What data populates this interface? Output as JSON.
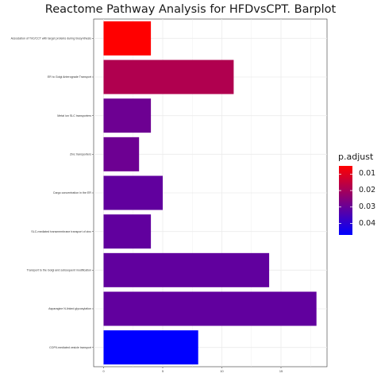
{
  "chart_data": {
    "type": "bar",
    "orientation": "horizontal",
    "title": "Reactome Pathway Analysis for HFDvsCPT. Barplot",
    "xlabel": "",
    "ylabel": "",
    "categories": [
      "Association of TriC/CCT with target proteins during biosynthesis",
      "ER to Golgi Anterograde Transport",
      "Metal ion SLC transporters",
      "Zinc transporters",
      "Cargo concentration in the ER",
      "SLC-mediated transmembrane transport of zinc",
      "Transport to the Golgi and subsequent modification",
      "Asparagine N-linked glycosylation",
      "COPII-mediated vesicle transport"
    ],
    "values": [
      4,
      11,
      4,
      3,
      5,
      4,
      14,
      18,
      8
    ],
    "p_adjust": [
      0.005,
      0.018,
      0.029,
      0.029,
      0.031,
      0.031,
      0.031,
      0.031,
      0.047
    ],
    "xlim": [
      0,
      19
    ],
    "x_ticks": [
      "0",
      "5",
      "10",
      "15"
    ],
    "grid": true,
    "legend": {
      "title": "p.adjust",
      "position": "right",
      "ticks": [
        "0.01",
        "0.02",
        "0.03",
        "0.04"
      ],
      "tick_values": [
        0.01,
        0.02,
        0.03,
        0.04
      ],
      "range": [
        0.005,
        0.047
      ],
      "color_low": "#FF0000",
      "color_high": "#0000FF"
    }
  }
}
